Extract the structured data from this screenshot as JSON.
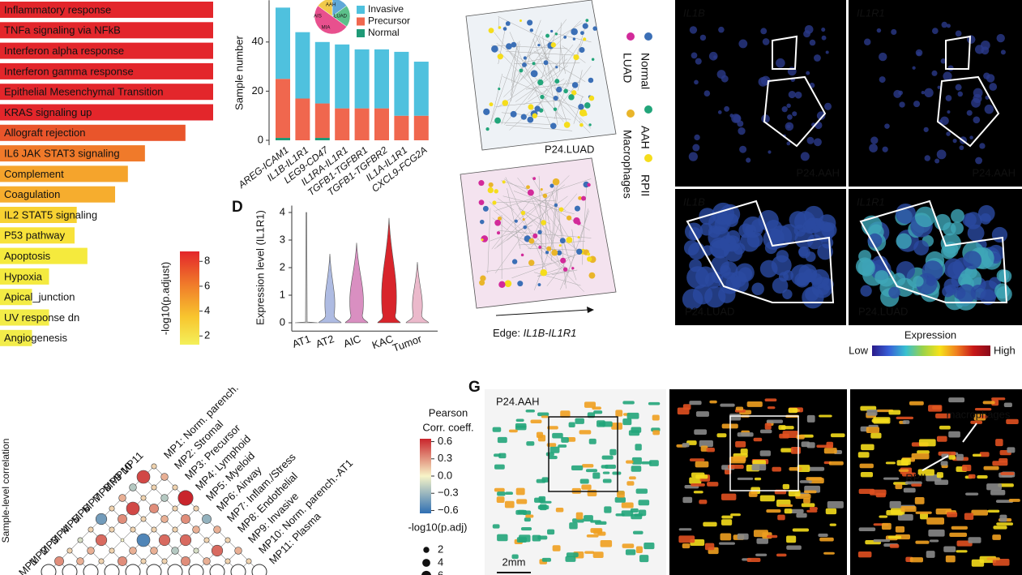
{
  "panel_labels": [
    "D",
    "G"
  ],
  "chart_data": [
    {
      "type": "hbar",
      "categories": [
        "Inflammatory response",
        "TNFa signaling via NFkB",
        "Interferon alpha response",
        "Interferon gamma response",
        "Epithelial Mesenchymal Transition",
        "KRAS signaling up",
        "Allograft rejection",
        "IL6 JAK STAT3 signaling",
        "Complement",
        "Coagulation",
        "IL2 STAT5 signaling",
        "P53 pathway",
        "Apoptosis",
        "Hypoxia",
        "Apical_junction",
        "UV response dn",
        "Angiogenesis"
      ],
      "values": [
        100,
        100,
        100,
        100,
        100,
        100,
        87,
        68,
        60,
        54,
        36,
        35,
        41,
        23,
        15,
        23,
        15
      ],
      "xlim": [
        0,
        100
      ],
      "colors": [
        "#e3262b",
        "#e3262b",
        "#e3262b",
        "#e3262b",
        "#e3262b",
        "#e3262b",
        "#e9552b",
        "#f07a2a",
        "#f5a42c",
        "#f6ad2e",
        "#f8d232",
        "#f8e23a",
        "#f5ea3d",
        "#f4ea3f",
        "#f4ec44",
        "#f3ec48",
        "#f2ec4a"
      ],
      "colorbar": {
        "title": "-log10(p.adjust)",
        "lim": [
          1.3,
          8.8
        ],
        "ticks": [
          2,
          4,
          6,
          8
        ]
      }
    },
    {
      "type": "stacked_bar",
      "y_label": "Sample number",
      "categories": [
        "AREG-ICAM1",
        "IL1B-IL1R1",
        "LEG9-CD47",
        "IL1RA-IL1R1",
        "TGFB1-TGFBR1",
        "TGFB1-TGFBR2",
        "IL1A-IL1R1",
        "CXCL9-FCG2A"
      ],
      "series": [
        {
          "name": "Normal",
          "color": "#1f9a77",
          "values": [
            1,
            0,
            1,
            0,
            0,
            0,
            0,
            0
          ]
        },
        {
          "name": "Precursor",
          "color": "#f0674e",
          "values": [
            24,
            17,
            14,
            13,
            13,
            13,
            10,
            10
          ]
        },
        {
          "name": "Invasive",
          "color": "#4fc1de",
          "values": [
            29,
            27,
            25,
            26,
            24,
            24,
            26,
            22
          ]
        }
      ],
      "ylim": [
        -2,
        57
      ],
      "yticks": [
        0,
        20,
        40
      ],
      "inset": {
        "type": "pie",
        "labels": [
          "AAH",
          "AIS",
          "LUAD",
          "MIA"
        ],
        "values": [
          15,
          20,
          50,
          15
        ],
        "colors": [
          "#5fa8d8",
          "#5cc08a",
          "#e8508e",
          "#f1c94b"
        ]
      }
    },
    {
      "type": "violin",
      "y_label": "Expression level (IL1R1)",
      "categories": [
        "AT1",
        "AT2",
        "AIC",
        "KAC",
        "Tumor"
      ],
      "values": [
        4.0,
        2.5,
        2.9,
        3.8,
        2.2
      ],
      "colors": [
        "#d0d0d0",
        "#aebbe2",
        "#d98fc1",
        "#d8242b",
        "#ebb9cb"
      ],
      "ylim": [
        -0.3,
        4.25
      ],
      "yticks": [
        0,
        1,
        2,
        3,
        4
      ]
    },
    {
      "type": "bubble_matrix",
      "y_label": "Sample-level correlation",
      "labels": [
        "MP1",
        "MP2",
        "MP3",
        "MP4",
        "MP5",
        "MP6",
        "MP7",
        "MP8",
        "MP9",
        "MP10",
        "MP11"
      ],
      "descriptions": [
        "MP1: Norm. parench.",
        "MP2: Stromal",
        "MP3: Precursor",
        "MP4: Lymphoid",
        "MP5: Myeloid",
        "MP6: Airway",
        "MP7: Inflam./Stress",
        "MP8: Endothelial",
        "MP9: Invasive",
        "MP10: Norm. parench.-AT1",
        "MP11: Plasma"
      ],
      "values": [
        [],
        [
          0.3
        ],
        [
          0.1,
          0.2
        ],
        [
          -0.1,
          0.2,
          0.1
        ],
        [
          0.1,
          0.4,
          0.1,
          0.3
        ],
        [
          -0.4,
          0.1,
          0.0,
          0.2,
          0.1
        ],
        [
          0.1,
          0.3,
          0.1,
          -0.5,
          0.2,
          0.1
        ],
        [
          0.2,
          0.5,
          0.1,
          0.1,
          0.4,
          -0.2,
          0.3
        ],
        [
          -0.2,
          0.1,
          0.3,
          0.2,
          0.1,
          0.4,
          -0.1,
          0.2
        ],
        [
          0.5,
          0.1,
          -0.2,
          0.1,
          0.3,
          0.2,
          0.1,
          0.4,
          0.1
        ],
        [
          0.1,
          0.2,
          0.1,
          0.6,
          0.1,
          -0.3,
          0.2,
          0.1,
          0.2,
          0.1
        ]
      ],
      "colorbar": {
        "title": [
          "Pearson",
          "Corr. coeff."
        ],
        "lim": [
          -0.65,
          0.65
        ],
        "ticks": [
          0.6,
          0.3,
          {
            "value": 0,
            "label": "0.0"
          },
          {
            "value": -0.3,
            "label": "−0.3"
          },
          {
            "value": -0.6,
            "label": "−0.6"
          }
        ]
      },
      "size_legend": {
        "title": "-log10(p.adj)",
        "ticks": [
          2,
          4,
          6
        ]
      }
    }
  ],
  "spatial": {
    "legend": [
      "Normal",
      "AAH",
      "RPII",
      "LUAD",
      "Macrophages"
    ],
    "legend_colors": [
      "#3b6fb6",
      "#22a57a",
      "#f5dd1c",
      "#d22a9a",
      "#e9b52a"
    ],
    "sample": "P24.LUAD",
    "edge_label": "Edge: ",
    "edge_genes": "IL1B-IL1R1"
  },
  "expression": {
    "genes": [
      "IL1B",
      "IL1R1",
      "IL1B",
      "IL1R1"
    ],
    "samples": [
      "P24.AAH",
      "P24.AAH",
      "P24.LUAD",
      "P24.LUAD"
    ],
    "title": "Expression",
    "low": "Low",
    "high": "High"
  },
  "panel_g": {
    "sample": "P24.AAH",
    "scale": "2mm",
    "annotations": [
      "macrophages",
      "RPII"
    ]
  }
}
